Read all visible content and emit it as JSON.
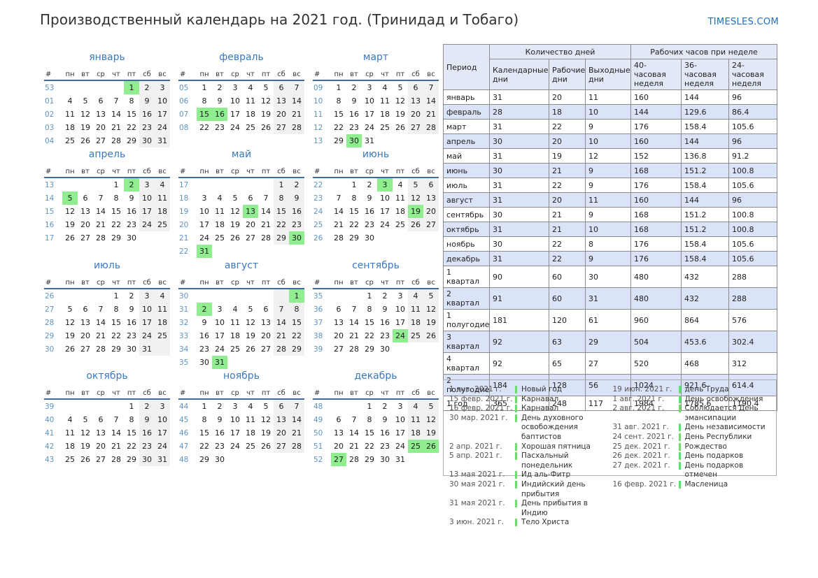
{
  "page": {
    "title": "Производственный календарь на 2021 год. (Тринидад и Тобаго)",
    "logo": "TIMESLES.COM"
  },
  "colors": {
    "accent_blue": "#3879c0",
    "week_number_blue": "#5f93c3",
    "logo_blue": "#1a6fc4",
    "holiday_green": "#90ee90",
    "weekend_gray": "#f1f1f1",
    "table_header_bg": "#e3e8f6",
    "table_stripe_bg": "#dbe3f8",
    "legend_bar_green": "#6cdc6c"
  },
  "calendar": {
    "day_headers": [
      "#",
      "пн",
      "вт",
      "ср",
      "чт",
      "пт",
      "сб",
      "вс"
    ],
    "months": [
      {
        "name": "январь",
        "highlight": [
          1
        ],
        "weeks": [
          [
            "53",
            "",
            "",
            "",
            "",
            "1",
            "2",
            "3"
          ],
          [
            "01",
            "4",
            "5",
            "6",
            "7",
            "8",
            "9",
            "10"
          ],
          [
            "02",
            "11",
            "12",
            "13",
            "14",
            "15",
            "16",
            "17"
          ],
          [
            "03",
            "18",
            "19",
            "20",
            "21",
            "22",
            "23",
            "24"
          ],
          [
            "04",
            "25",
            "26",
            "27",
            "28",
            "29",
            "30",
            "31"
          ]
        ]
      },
      {
        "name": "февраль",
        "highlight": [
          15,
          16
        ],
        "weeks": [
          [
            "05",
            "1",
            "2",
            "3",
            "4",
            "5",
            "6",
            "7"
          ],
          [
            "06",
            "8",
            "9",
            "10",
            "11",
            "12",
            "13",
            "14"
          ],
          [
            "07",
            "15",
            "16",
            "17",
            "18",
            "19",
            "20",
            "21"
          ],
          [
            "08",
            "22",
            "23",
            "24",
            "25",
            "26",
            "27",
            "28"
          ]
        ]
      },
      {
        "name": "март",
        "highlight": [
          30
        ],
        "weeks": [
          [
            "09",
            "1",
            "2",
            "3",
            "4",
            "5",
            "6",
            "7"
          ],
          [
            "10",
            "8",
            "9",
            "10",
            "11",
            "12",
            "13",
            "14"
          ],
          [
            "11",
            "15",
            "16",
            "17",
            "18",
            "19",
            "20",
            "21"
          ],
          [
            "12",
            "22",
            "23",
            "24",
            "25",
            "26",
            "27",
            "28"
          ],
          [
            "13",
            "29",
            "30",
            "31",
            "",
            "",
            "",
            ""
          ]
        ]
      },
      {
        "name": "апрель",
        "highlight": [
          2,
          5
        ],
        "weeks": [
          [
            "13",
            "",
            "",
            "",
            "1",
            "2",
            "3",
            "4"
          ],
          [
            "14",
            "5",
            "6",
            "7",
            "8",
            "9",
            "10",
            "11"
          ],
          [
            "15",
            "12",
            "13",
            "14",
            "15",
            "16",
            "17",
            "18"
          ],
          [
            "16",
            "19",
            "20",
            "21",
            "22",
            "23",
            "24",
            "25"
          ],
          [
            "17",
            "26",
            "27",
            "28",
            "29",
            "30",
            "",
            ""
          ]
        ]
      },
      {
        "name": "май",
        "highlight": [
          13,
          30,
          31
        ],
        "weeks": [
          [
            "17",
            "",
            "",
            "",
            "",
            "",
            "1",
            "2"
          ],
          [
            "18",
            "3",
            "4",
            "5",
            "6",
            "7",
            "8",
            "9"
          ],
          [
            "19",
            "10",
            "11",
            "12",
            "13",
            "14",
            "15",
            "16"
          ],
          [
            "20",
            "17",
            "18",
            "19",
            "20",
            "21",
            "22",
            "23"
          ],
          [
            "21",
            "24",
            "25",
            "26",
            "27",
            "28",
            "29",
            "30"
          ],
          [
            "22",
            "31",
            "",
            "",
            "",
            "",
            "",
            ""
          ]
        ]
      },
      {
        "name": "июнь",
        "highlight": [
          3,
          19
        ],
        "weeks": [
          [
            "22",
            "",
            "1",
            "2",
            "3",
            "4",
            "5",
            "6"
          ],
          [
            "23",
            "7",
            "8",
            "9",
            "10",
            "11",
            "12",
            "13"
          ],
          [
            "24",
            "14",
            "15",
            "16",
            "17",
            "18",
            "19",
            "20"
          ],
          [
            "25",
            "21",
            "22",
            "23",
            "24",
            "25",
            "26",
            "27"
          ],
          [
            "26",
            "28",
            "29",
            "30",
            "",
            "",
            "",
            ""
          ]
        ]
      },
      {
        "name": "июль",
        "highlight": [],
        "weeks": [
          [
            "26",
            "",
            "",
            "",
            "1",
            "2",
            "3",
            "4"
          ],
          [
            "27",
            "5",
            "6",
            "7",
            "8",
            "9",
            "10",
            "11"
          ],
          [
            "28",
            "12",
            "13",
            "14",
            "15",
            "16",
            "17",
            "18"
          ],
          [
            "29",
            "19",
            "20",
            "21",
            "22",
            "23",
            "24",
            "25"
          ],
          [
            "30",
            "26",
            "27",
            "28",
            "29",
            "30",
            "31",
            ""
          ]
        ]
      },
      {
        "name": "август",
        "highlight": [
          1,
          2,
          31
        ],
        "weeks": [
          [
            "30",
            "",
            "",
            "",
            "",
            "",
            "",
            "1"
          ],
          [
            "31",
            "2",
            "3",
            "4",
            "5",
            "6",
            "7",
            "8"
          ],
          [
            "32",
            "9",
            "10",
            "11",
            "12",
            "13",
            "14",
            "15"
          ],
          [
            "33",
            "16",
            "17",
            "18",
            "19",
            "20",
            "21",
            "22"
          ],
          [
            "34",
            "23",
            "24",
            "25",
            "26",
            "27",
            "28",
            "29"
          ],
          [
            "35",
            "30",
            "31",
            "",
            "",
            "",
            "",
            ""
          ]
        ]
      },
      {
        "name": "сентябрь",
        "highlight": [
          24
        ],
        "weeks": [
          [
            "35",
            "",
            "",
            "1",
            "2",
            "3",
            "4",
            "5"
          ],
          [
            "36",
            "6",
            "7",
            "8",
            "9",
            "10",
            "11",
            "12"
          ],
          [
            "37",
            "13",
            "14",
            "15",
            "16",
            "17",
            "18",
            "19"
          ],
          [
            "38",
            "20",
            "21",
            "22",
            "23",
            "24",
            "25",
            "26"
          ],
          [
            "39",
            "27",
            "28",
            "29",
            "30",
            "",
            "",
            ""
          ]
        ]
      },
      {
        "name": "октябрь",
        "highlight": [],
        "weeks": [
          [
            "39",
            "",
            "",
            "",
            "",
            "1",
            "2",
            "3"
          ],
          [
            "40",
            "4",
            "5",
            "6",
            "7",
            "8",
            "9",
            "10"
          ],
          [
            "41",
            "11",
            "12",
            "13",
            "14",
            "15",
            "16",
            "17"
          ],
          [
            "42",
            "18",
            "19",
            "20",
            "21",
            "22",
            "23",
            "24"
          ],
          [
            "43",
            "25",
            "26",
            "27",
            "28",
            "29",
            "30",
            "31"
          ]
        ]
      },
      {
        "name": "ноябрь",
        "highlight": [],
        "weeks": [
          [
            "44",
            "1",
            "2",
            "3",
            "4",
            "5",
            "6",
            "7"
          ],
          [
            "45",
            "8",
            "9",
            "10",
            "11",
            "12",
            "13",
            "14"
          ],
          [
            "46",
            "15",
            "16",
            "17",
            "18",
            "19",
            "20",
            "21"
          ],
          [
            "47",
            "22",
            "23",
            "24",
            "25",
            "26",
            "27",
            "28"
          ],
          [
            "48",
            "29",
            "30",
            "",
            "",
            "",
            "",
            ""
          ]
        ]
      },
      {
        "name": "декабрь",
        "highlight": [
          25,
          26,
          27
        ],
        "weeks": [
          [
            "48",
            "",
            "",
            "1",
            "2",
            "3",
            "4",
            "5"
          ],
          [
            "49",
            "6",
            "7",
            "8",
            "9",
            "10",
            "11",
            "12"
          ],
          [
            "50",
            "13",
            "14",
            "15",
            "16",
            "17",
            "18",
            "19"
          ],
          [
            "51",
            "20",
            "21",
            "22",
            "23",
            "24",
            "25",
            "26"
          ],
          [
            "52",
            "27",
            "28",
            "29",
            "30",
            "31",
            "",
            ""
          ]
        ]
      }
    ]
  },
  "table": {
    "period_header": "Период",
    "days_group": "Количество дней",
    "hours_group": "Рабочих часов при неделе",
    "sub_headers": [
      "Календарные дни",
      "Рабочие дни",
      "Выходные дни",
      "40-часовая неделя",
      "36-часовая неделя",
      "24-часовая неделя"
    ],
    "rows": [
      {
        "period": "январь",
        "values": [
          "31",
          "20",
          "11",
          "160",
          "144",
          "96"
        ]
      },
      {
        "period": "февраль",
        "values": [
          "28",
          "18",
          "10",
          "144",
          "129.6",
          "86.4"
        ]
      },
      {
        "period": "март",
        "values": [
          "31",
          "22",
          "9",
          "176",
          "158.4",
          "105.6"
        ]
      },
      {
        "period": "апрель",
        "values": [
          "30",
          "20",
          "10",
          "160",
          "144",
          "96"
        ]
      },
      {
        "period": "май",
        "values": [
          "31",
          "19",
          "12",
          "152",
          "136.8",
          "91.2"
        ]
      },
      {
        "period": "июнь",
        "values": [
          "30",
          "21",
          "9",
          "168",
          "151.2",
          "100.8"
        ]
      },
      {
        "period": "июль",
        "values": [
          "31",
          "22",
          "9",
          "176",
          "158.4",
          "105.6"
        ]
      },
      {
        "period": "август",
        "values": [
          "31",
          "20",
          "11",
          "160",
          "144",
          "96"
        ]
      },
      {
        "period": "сентябрь",
        "values": [
          "30",
          "21",
          "9",
          "168",
          "151.2",
          "100.8"
        ]
      },
      {
        "period": "октябрь",
        "values": [
          "31",
          "21",
          "10",
          "168",
          "151.2",
          "100.8"
        ]
      },
      {
        "period": "ноябрь",
        "values": [
          "30",
          "22",
          "8",
          "176",
          "158.4",
          "105.6"
        ]
      },
      {
        "period": "декабрь",
        "values": [
          "31",
          "22",
          "9",
          "176",
          "158.4",
          "105.6"
        ]
      },
      {
        "period": "1 квартал",
        "values": [
          "90",
          "60",
          "30",
          "480",
          "432",
          "288"
        ]
      },
      {
        "period": "2 квартал",
        "values": [
          "91",
          "60",
          "31",
          "480",
          "432",
          "288"
        ]
      },
      {
        "period": "1 полугодие",
        "values": [
          "181",
          "120",
          "61",
          "960",
          "864",
          "576"
        ]
      },
      {
        "period": "3 квартал",
        "values": [
          "92",
          "63",
          "29",
          "504",
          "453.6",
          "302.4"
        ]
      },
      {
        "period": "4 квартал",
        "values": [
          "92",
          "65",
          "27",
          "520",
          "468",
          "312"
        ]
      },
      {
        "period": "2 полугодие",
        "values": [
          "184",
          "128",
          "56",
          "1024",
          "921.6",
          "614.4"
        ]
      },
      {
        "period": "1 год",
        "values": [
          "365",
          "248",
          "117",
          "1984",
          "1785.6",
          "1190.4"
        ]
      }
    ]
  },
  "legend": {
    "left": [
      {
        "date": "1 янв. 2021 г.",
        "name": "Новый год"
      },
      {
        "date": "15 февр. 2021 г.",
        "name": "Карнавал"
      },
      {
        "date": "16 февр. 2021 г.",
        "name": "Карнавал"
      },
      {
        "date": "30 мар. 2021 г.",
        "name": "День духовного освобождения баптистов"
      },
      {
        "date": "2 апр. 2021 г.",
        "name": "Хорошая пятница"
      },
      {
        "date": "5 апр. 2021 г.",
        "name": "Пасхальный понедельник"
      },
      {
        "date": "13 мая 2021 г.",
        "name": "Ид аль-Фитр"
      },
      {
        "date": "30 мая 2021 г.",
        "name": "Индийский день прибытия"
      },
      {
        "date": "31 мая 2021 г.",
        "name": "День прибытия в Индию"
      },
      {
        "date": "3 июн. 2021 г.",
        "name": "Тело Христа"
      }
    ],
    "right": [
      {
        "date": "19 июн. 2021 г.",
        "name": "день Труда"
      },
      {
        "date": "1 авг. 2021 г.",
        "name": "День освобождения"
      },
      {
        "date": "2 авг. 2021 г.",
        "name": "Соблюдается День эмансипации"
      },
      {
        "date": "31 авг. 2021 г.",
        "name": "День независимости"
      },
      {
        "date": "24 сент. 2021 г.",
        "name": "День Республики"
      },
      {
        "date": "25 дек. 2021 г.",
        "name": "Рождество"
      },
      {
        "date": "26 дек. 2021 г.",
        "name": "День подарков"
      },
      {
        "date": "27 дек. 2021 г.",
        "name": "День подарков отмечен"
      },
      {
        "date": "16 февр. 2021 г.",
        "name": "Масленица"
      }
    ]
  }
}
